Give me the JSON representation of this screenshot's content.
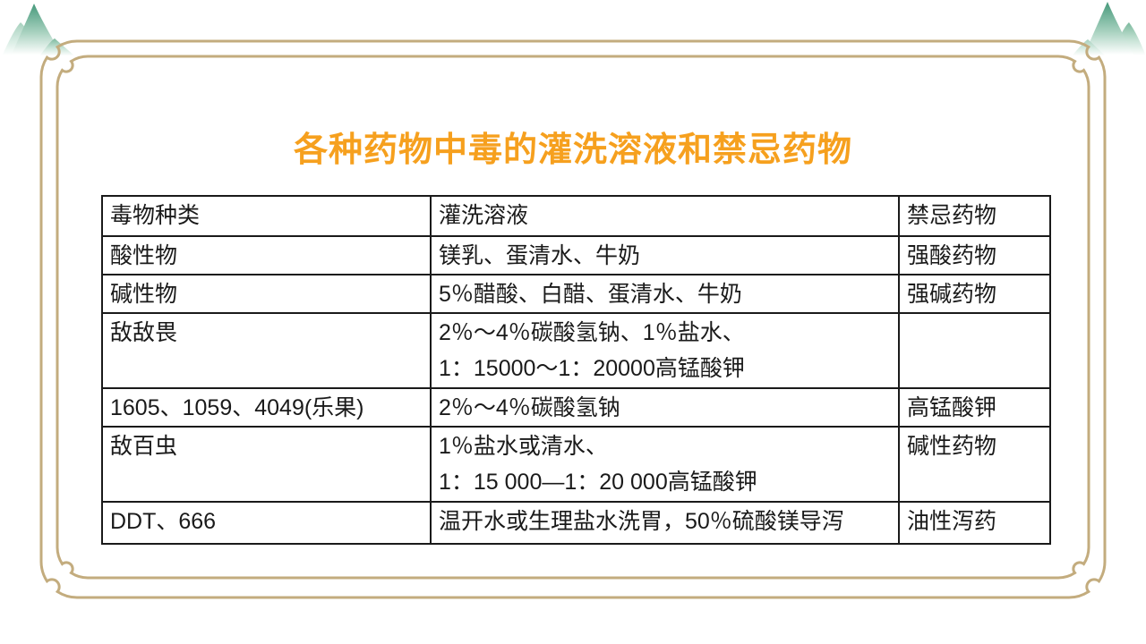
{
  "theme": {
    "title_color": "#F6A01E",
    "frame_color": "#C3AC7E",
    "table_border_color": "#1A1A1A",
    "text_color": "#1A1A1A",
    "mountain_green": "#46997B",
    "bg": "#FFFFFF"
  },
  "slide": {
    "title": "各种药物中毒的灌洗溶液和禁忌药物"
  },
  "table": {
    "headers": [
      "毒物种类",
      "灌洗溶液",
      "禁忌药物"
    ],
    "rows": [
      [
        "酸性物",
        "镁乳、蛋清水、牛奶",
        "强酸药物"
      ],
      [
        "碱性物",
        "5％醋酸、白醋、蛋清水、牛奶",
        "强碱药物"
      ],
      [
        "敌敌畏",
        "2％～4％碳酸氢钠、1％盐水、\n1：15000～1：20000高锰酸钾",
        ""
      ],
      [
        "1605、1059、4049(乐果)",
        "2％～4％碳酸氢钠",
        "高锰酸钾"
      ],
      [
        "敌百虫",
        "1％盐水或清水、\n1：15 000—1：20 000高锰酸钾",
        "碱性药物"
      ],
      [
        "DDT、666",
        "温开水或生理盐水洗胃，50％硫酸镁导泻",
        "油性泻药"
      ]
    ]
  }
}
